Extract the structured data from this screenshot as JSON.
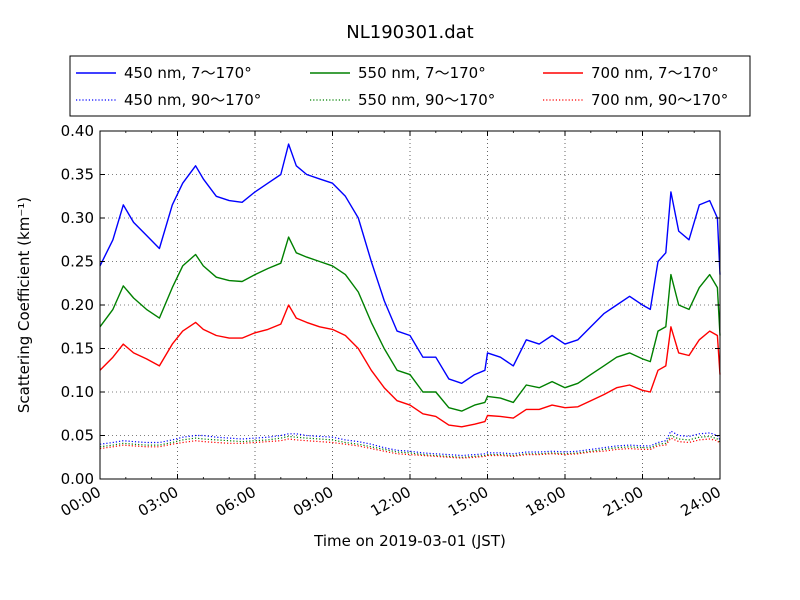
{
  "chart_data": {
    "type": "line",
    "title": "NL190301.dat",
    "xlabel": "Time on 2019-03-01 (JST)",
    "ylabel": "Scattering Coefficient (km⁻¹)",
    "xlim": [
      "2019-03-01T00:00",
      "2019-03-02T00:00"
    ],
    "ylim": [
      0,
      0.4
    ],
    "x_ticks": [
      "00:00",
      "03:00",
      "06:00",
      "09:00",
      "12:00",
      "15:00",
      "18:00",
      "21:00",
      "24:00"
    ],
    "y_ticks": [
      "0.00",
      "0.05",
      "0.10",
      "0.15",
      "0.20",
      "0.25",
      "0.30",
      "0.35",
      "0.40"
    ],
    "grid": true,
    "legend_position": "top",
    "x_hours": [
      0,
      0.5,
      0.9,
      1.3,
      1.8,
      2.3,
      2.8,
      3.2,
      3.7,
      4.0,
      4.5,
      5.0,
      5.5,
      6.0,
      6.5,
      7.0,
      7.3,
      7.6,
      8.0,
      8.5,
      9.0,
      9.5,
      10.0,
      10.5,
      11.0,
      11.5,
      12.0,
      12.5,
      13.0,
      13.5,
      14.0,
      14.5,
      14.9,
      15.0,
      15.5,
      16.0,
      16.5,
      17.0,
      17.5,
      18.0,
      18.5,
      19.0,
      19.5,
      20.0,
      20.5,
      21.0,
      21.3,
      21.6,
      21.9,
      22.1,
      22.4,
      22.8,
      23.2,
      23.6,
      23.9,
      24.0
    ],
    "series": [
      {
        "name": "450 nm, 7～170°",
        "color": "#0000ff",
        "style": "solid",
        "values": [
          0.245,
          0.275,
          0.315,
          0.295,
          0.28,
          0.265,
          0.315,
          0.34,
          0.36,
          0.345,
          0.325,
          0.32,
          0.318,
          0.33,
          0.34,
          0.35,
          0.385,
          0.36,
          0.35,
          0.345,
          0.34,
          0.325,
          0.3,
          0.25,
          0.205,
          0.17,
          0.165,
          0.14,
          0.14,
          0.115,
          0.11,
          0.12,
          0.125,
          0.145,
          0.14,
          0.13,
          0.16,
          0.155,
          0.165,
          0.155,
          0.16,
          0.175,
          0.19,
          0.2,
          0.21,
          0.2,
          0.195,
          0.25,
          0.26,
          0.33,
          0.285,
          0.275,
          0.315,
          0.32,
          0.3,
          0.235
        ]
      },
      {
        "name": "450 nm, 90～170°",
        "color": "#0000ff",
        "style": "dotted",
        "values": [
          0.04,
          0.042,
          0.044,
          0.043,
          0.042,
          0.042,
          0.045,
          0.048,
          0.05,
          0.05,
          0.048,
          0.047,
          0.046,
          0.047,
          0.048,
          0.05,
          0.052,
          0.052,
          0.05,
          0.049,
          0.048,
          0.045,
          0.043,
          0.04,
          0.036,
          0.033,
          0.032,
          0.03,
          0.029,
          0.028,
          0.027,
          0.028,
          0.029,
          0.03,
          0.03,
          0.029,
          0.031,
          0.031,
          0.032,
          0.031,
          0.032,
          0.034,
          0.036,
          0.038,
          0.039,
          0.038,
          0.038,
          0.042,
          0.044,
          0.055,
          0.05,
          0.049,
          0.052,
          0.053,
          0.05,
          0.045
        ]
      },
      {
        "name": "550 nm, 7～170°",
        "color": "#008000",
        "style": "solid",
        "values": [
          0.175,
          0.195,
          0.222,
          0.208,
          0.195,
          0.185,
          0.22,
          0.245,
          0.258,
          0.245,
          0.232,
          0.228,
          0.227,
          0.235,
          0.242,
          0.248,
          0.278,
          0.26,
          0.255,
          0.25,
          0.245,
          0.235,
          0.215,
          0.18,
          0.15,
          0.125,
          0.12,
          0.1,
          0.1,
          0.082,
          0.078,
          0.085,
          0.088,
          0.095,
          0.093,
          0.088,
          0.108,
          0.105,
          0.112,
          0.105,
          0.11,
          0.12,
          0.13,
          0.14,
          0.145,
          0.138,
          0.135,
          0.17,
          0.175,
          0.235,
          0.2,
          0.195,
          0.22,
          0.235,
          0.22,
          0.165
        ]
      },
      {
        "name": "550 nm, 90～170°",
        "color": "#008000",
        "style": "dotted",
        "values": [
          0.037,
          0.039,
          0.041,
          0.04,
          0.039,
          0.039,
          0.042,
          0.045,
          0.047,
          0.046,
          0.045,
          0.044,
          0.043,
          0.044,
          0.045,
          0.047,
          0.049,
          0.048,
          0.047,
          0.046,
          0.045,
          0.042,
          0.04,
          0.037,
          0.034,
          0.031,
          0.03,
          0.028,
          0.027,
          0.026,
          0.025,
          0.026,
          0.027,
          0.028,
          0.028,
          0.027,
          0.029,
          0.029,
          0.03,
          0.029,
          0.03,
          0.032,
          0.034,
          0.036,
          0.037,
          0.036,
          0.036,
          0.04,
          0.041,
          0.05,
          0.046,
          0.045,
          0.048,
          0.049,
          0.046,
          0.042
        ]
      },
      {
        "name": "700 nm, 7～170°",
        "color": "#ff0000",
        "style": "solid",
        "values": [
          0.125,
          0.14,
          0.155,
          0.145,
          0.138,
          0.13,
          0.155,
          0.17,
          0.18,
          0.172,
          0.165,
          0.162,
          0.162,
          0.168,
          0.172,
          0.178,
          0.2,
          0.185,
          0.18,
          0.175,
          0.172,
          0.165,
          0.15,
          0.125,
          0.105,
          0.09,
          0.085,
          0.075,
          0.072,
          0.062,
          0.06,
          0.063,
          0.066,
          0.073,
          0.072,
          0.07,
          0.08,
          0.08,
          0.085,
          0.082,
          0.083,
          0.09,
          0.097,
          0.105,
          0.108,
          0.102,
          0.1,
          0.125,
          0.13,
          0.175,
          0.145,
          0.142,
          0.16,
          0.17,
          0.165,
          0.12
        ]
      },
      {
        "name": "700 nm, 90～170°",
        "color": "#ff0000",
        "style": "dotted",
        "values": [
          0.035,
          0.037,
          0.039,
          0.038,
          0.037,
          0.037,
          0.04,
          0.042,
          0.044,
          0.043,
          0.042,
          0.041,
          0.041,
          0.042,
          0.043,
          0.044,
          0.046,
          0.045,
          0.044,
          0.043,
          0.042,
          0.04,
          0.038,
          0.035,
          0.032,
          0.029,
          0.028,
          0.027,
          0.026,
          0.025,
          0.024,
          0.025,
          0.026,
          0.027,
          0.027,
          0.026,
          0.028,
          0.028,
          0.029,
          0.028,
          0.029,
          0.031,
          0.032,
          0.034,
          0.035,
          0.034,
          0.034,
          0.038,
          0.039,
          0.047,
          0.043,
          0.042,
          0.045,
          0.046,
          0.044,
          0.04
        ]
      }
    ]
  }
}
